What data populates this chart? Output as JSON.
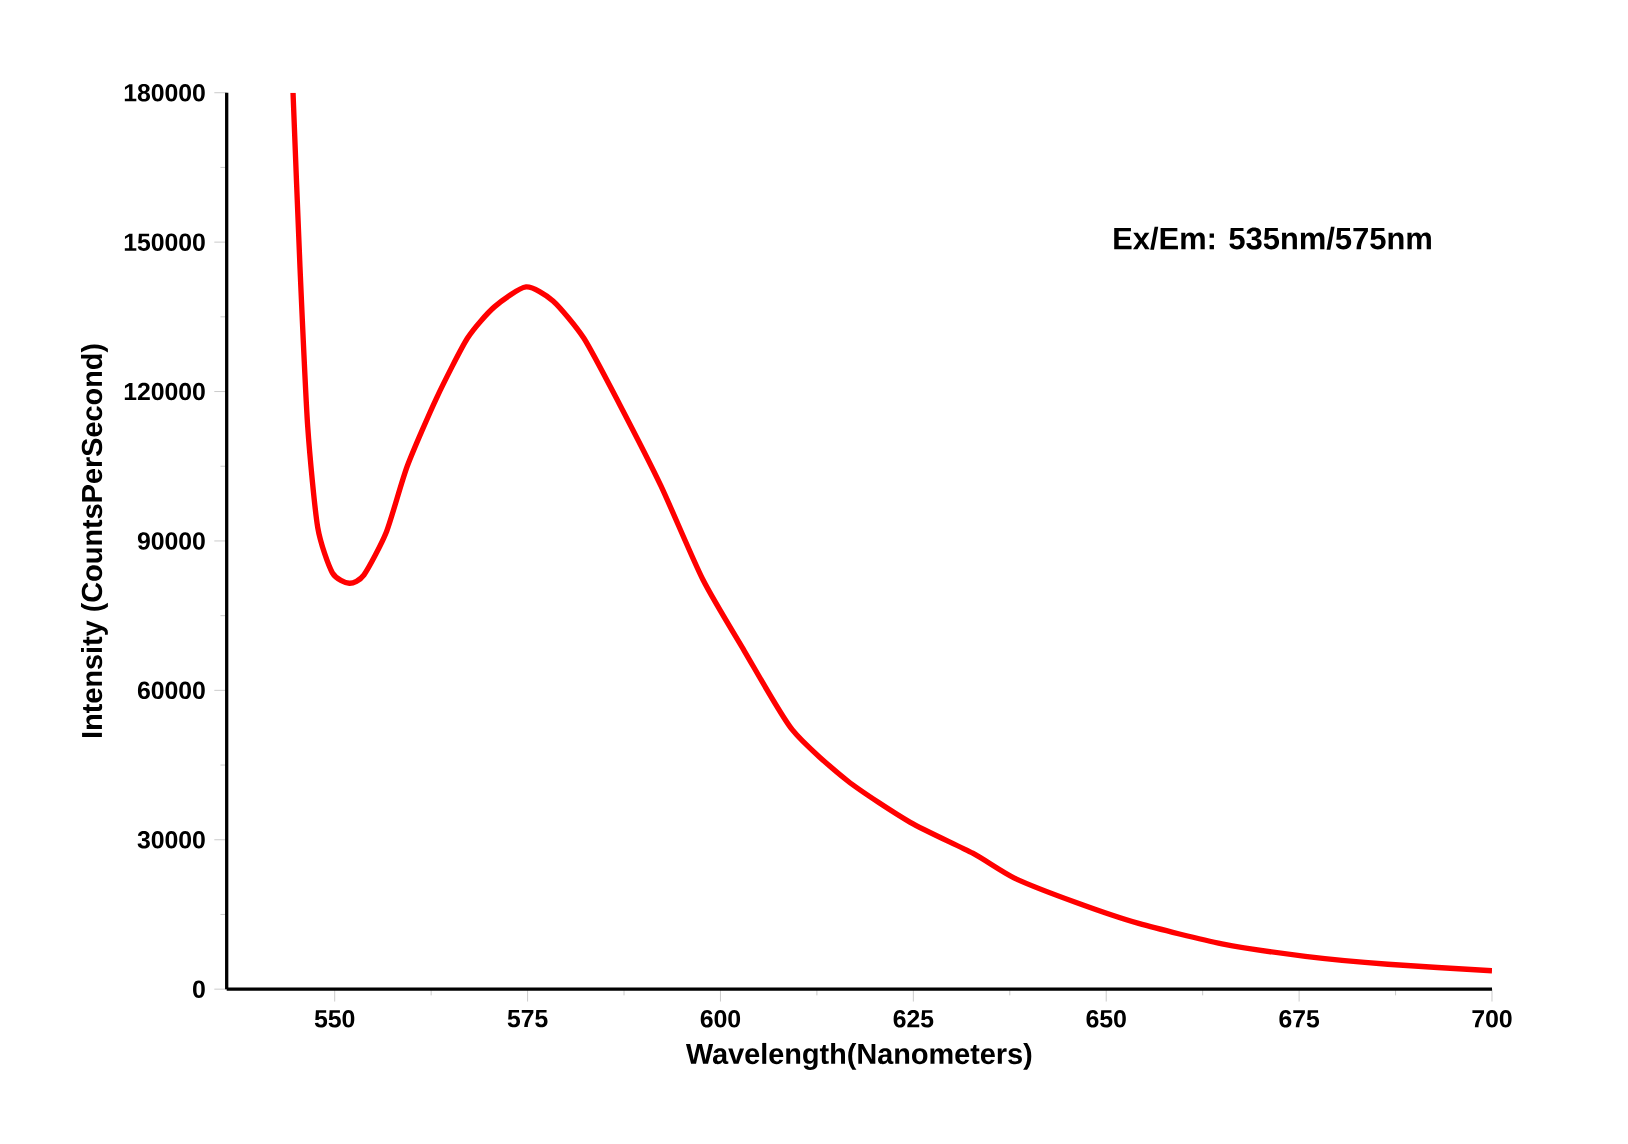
{
  "chart_data": {
    "type": "line",
    "xlabel": "Wavelength(Nanometers)",
    "ylabel": "Intensity (CountsPerSecond)",
    "annotations": [
      "Ex/Em: 535nm/575nm"
    ],
    "xlim": [
      536,
      700
    ],
    "xticks": [
      550,
      575,
      600,
      625,
      650,
      675,
      700
    ],
    "ylim": [
      0,
      180000
    ],
    "yticks": [
      0,
      30000,
      60000,
      90000,
      120000,
      150000,
      180000
    ],
    "grid": false,
    "marker": "none",
    "line_style": "solid",
    "series": [
      {
        "color": "#ff0000",
        "x": [
          544.6,
          545.5,
          546.5,
          547.8,
          549.7,
          551.9,
          553.8,
          556.7,
          559.4,
          563.2,
          567.2,
          570.7,
          574.8,
          578.3,
          582.3,
          586.9,
          592.3,
          597.7,
          603.1,
          609.3,
          616.5,
          624.6,
          632.7,
          638.1,
          646.1,
          654.2,
          665,
          675.8,
          686.5,
          700
        ],
        "values": [
          180000,
          145000,
          113000,
          92700,
          83600,
          81500,
          83200,
          91800,
          105000,
          118700,
          130700,
          137000,
          141000,
          138200,
          130700,
          117500,
          101000,
          82300,
          67900,
          52100,
          41800,
          33500,
          27300,
          22300,
          17400,
          13200,
          9100,
          6600,
          5000,
          3700
        ]
      }
    ]
  }
}
